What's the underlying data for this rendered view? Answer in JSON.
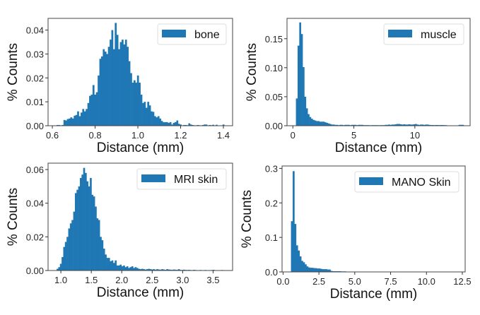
{
  "colors": {
    "bar": "#1f77b4",
    "frame": "#444444",
    "legend_border": "#dddddd"
  },
  "chart_data": [
    {
      "type": "bar",
      "subtype": "histogram",
      "legend": "bone",
      "legend_placement": "upper-right",
      "xlabel": "Distance (mm)",
      "ylabel": "% Counts",
      "xlim": [
        0.58,
        1.443
      ],
      "ylim": [
        0,
        0.0449
      ],
      "xticks": [
        0.6,
        0.8,
        1.0,
        1.2,
        1.4
      ],
      "xtick_labels": [
        "0.6",
        "0.8",
        "1.0",
        "1.2",
        "1.4"
      ],
      "yticks": [
        0,
        0.01,
        0.02,
        0.03,
        0.04
      ],
      "ytick_labels": [
        "0.00",
        "0.01",
        "0.02",
        "0.03",
        "0.04"
      ],
      "bin_start": 0.62,
      "bin_width": 0.008,
      "values": [
        0.0003,
        0.0003,
        0,
        0.0003,
        0.0024,
        0.0022,
        0.0028,
        0.003,
        0.0035,
        0.003,
        0.0042,
        0.0045,
        0.006,
        0.004,
        0.0055,
        0.007,
        0.006,
        0.007,
        0.0095,
        0.0125,
        0.013,
        0.017,
        0.013,
        0.014,
        0.021,
        0.028,
        0.029,
        0.032,
        0.031,
        0.03,
        0.033,
        0.036,
        0.04,
        0.032,
        0.043,
        0.038,
        0.032,
        0.035,
        0.036,
        0.034,
        0.036,
        0.033,
        0.027,
        0.022,
        0.018,
        0.019,
        0.018,
        0.021,
        0.018,
        0.013,
        0.0095,
        0.01,
        0.0075,
        0.01,
        0.0085,
        0.006,
        0.0058,
        0.004,
        0.0035,
        0.004,
        0.003,
        0.002,
        0.0015,
        0.0015,
        0.0015,
        0.0012,
        0.0015,
        0.0005,
        0.0012,
        0.0015,
        0.0022,
        0.0008,
        0.0005,
        0,
        0.0003,
        0.0003,
        0.0002,
        0.001,
        0.0005,
        0.0003,
        0.0002,
        0,
        0.0003,
        0.0002,
        0,
        0.0003,
        0.0005,
        0.0005,
        0,
        0.0003,
        0.0002,
        0.0004,
        0,
        0.0004,
        0,
        0,
        0,
        0.0005,
        0,
        0
      ]
    },
    {
      "type": "bar",
      "subtype": "histogram",
      "legend": "muscle",
      "legend_placement": "upper-right",
      "xlabel": "Distance (mm)",
      "ylabel": "% Counts",
      "xlim": [
        -0.48,
        14.53
      ],
      "ylim": [
        0,
        0.185
      ],
      "xticks": [
        0,
        5,
        10
      ],
      "xtick_labels": [
        "0",
        "5",
        "10"
      ],
      "yticks": [
        0,
        0.05,
        0.1,
        0.15
      ],
      "ytick_labels": [
        "0.00",
        "0.05",
        "0.10",
        "0.15"
      ],
      "bin_start": 0.25,
      "bin_width": 0.1375,
      "values": [
        0.047,
        0.138,
        0.178,
        0.158,
        0.101,
        0.05,
        0.03,
        0.02,
        0.015,
        0.012,
        0.01,
        0.009,
        0.008,
        0.008,
        0.007,
        0.007,
        0.007,
        0.006,
        0.005,
        0.004,
        0.003,
        0.002,
        0.002,
        0.0015,
        0.0015,
        0.001,
        0.0015,
        0.0015,
        0.001,
        0.0015,
        0.0015,
        0.0015,
        0.001,
        0.0015,
        0.0015,
        0.0015,
        0.001,
        0.0015,
        0.0015,
        0.0015,
        0.001,
        0.001,
        0.001,
        0.001,
        0.0008,
        0.001,
        0.001,
        0.001,
        0.001,
        0.0008,
        0.001,
        0.001,
        0.001,
        0.0015,
        0.0015,
        0.002,
        0.0015,
        0.002,
        0.002,
        0.0025,
        0.003,
        0.003,
        0.0025,
        0.002,
        0.0025,
        0.002,
        0.002,
        0.0025,
        0.002,
        0.002,
        0.0025,
        0.003,
        0.002,
        0.0015,
        0.002,
        0.002,
        0.0015,
        0.002,
        0.002,
        0.0015,
        0.0012,
        0.0012,
        0.001,
        0.0012,
        0.0012,
        0.001,
        0.0012,
        0.0012,
        0.001,
        0.001,
        0.0005,
        0.0005,
        0.0005,
        0,
        0,
        0,
        0,
        0.0015,
        0.0015,
        0.0015
      ]
    },
    {
      "type": "bar",
      "subtype": "histogram",
      "legend": "MRI skin",
      "legend_placement": "upper-right",
      "xlabel": "Distance (mm)",
      "ylabel": "% Counts",
      "xlim": [
        0.79,
        3.82
      ],
      "ylim": [
        0,
        0.0638
      ],
      "xticks": [
        1.0,
        1.5,
        2.0,
        2.5,
        3.0,
        3.5
      ],
      "xtick_labels": [
        "1.0",
        "1.5",
        "2.0",
        "2.5",
        "3.0",
        "3.5"
      ],
      "yticks": [
        0,
        0.02,
        0.04,
        0.06
      ],
      "ytick_labels": [
        "0.00",
        "0.02",
        "0.04",
        "0.06"
      ],
      "bin_start": 0.93,
      "bin_width": 0.0273,
      "values": [
        0.001,
        0.002,
        0.004,
        0.008,
        0.014,
        0.017,
        0.02,
        0.025,
        0.028,
        0.03,
        0.035,
        0.046,
        0.048,
        0.05,
        0.055,
        0.057,
        0.061,
        0.058,
        0.053,
        0.05,
        0.055,
        0.045,
        0.044,
        0.038,
        0.031,
        0.03,
        0.02,
        0.018,
        0.013,
        0.0095,
        0.0075,
        0.0075,
        0.0055,
        0.006,
        0.0045,
        0.006,
        0.003,
        0.003,
        0.0035,
        0.0025,
        0.003,
        0.002,
        0.0025,
        0.0015,
        0.002,
        0.0025,
        0.0015,
        0.002,
        0.0015,
        0.001,
        0.0008,
        0.001,
        0.0008,
        0.0006,
        0.0008,
        0.001,
        0.0008,
        0.0006,
        0.0008,
        0.0005,
        0.0008,
        0.0006,
        0.0005,
        0.0008,
        0.0006,
        0.0004,
        0.0008,
        0.0006,
        0.0005,
        0.0004,
        0.0006,
        0.0005,
        0.0004,
        0.0008,
        0.0004,
        0.0003,
        0.0005,
        0.0004,
        0.0003,
        0.0004,
        0.0003,
        0.0002,
        0.0004,
        0.0003,
        0.0002,
        0,
        0.0003,
        0.0002,
        0,
        0.0003,
        0.0002,
        0,
        0,
        0.0003,
        0.0004,
        0,
        0,
        0.0002,
        0,
        0.0003
      ]
    },
    {
      "type": "bar",
      "subtype": "histogram",
      "legend": "MANO Skin",
      "legend_placement": "upper-right",
      "xlabel": "Distance (mm)",
      "ylabel": "% Counts",
      "xlim": [
        -0.07,
        12.7
      ],
      "ylim": [
        0,
        0.307
      ],
      "xticks": [
        0,
        2.5,
        5,
        7.5,
        10,
        12.5
      ],
      "xtick_labels": [
        "0.0",
        "2.5",
        "5.0",
        "7.5",
        "10.0",
        "12.5"
      ],
      "yticks": [
        0,
        0.1,
        0.2,
        0.3
      ],
      "ytick_labels": [
        "0.0",
        "0.1",
        "0.2",
        "0.3"
      ],
      "bin_start": 0.55,
      "bin_width": 0.12,
      "values": [
        0.147,
        0.292,
        0.139,
        0.077,
        0.062,
        0.045,
        0.032,
        0.028,
        0.022,
        0.016,
        0.013,
        0.012,
        0.012,
        0.011,
        0.011,
        0.01,
        0.01,
        0.009,
        0.008,
        0.008,
        0.008,
        0.007,
        0.007,
        0.003,
        0.002,
        0.002,
        0.002,
        0.002,
        0.002,
        0.0015,
        0.0015,
        0.0015,
        0.001,
        0,
        0,
        0,
        0.001,
        0,
        0,
        0.001,
        0,
        0,
        0,
        0.001,
        0,
        0,
        0,
        0,
        0.001,
        0,
        0,
        0,
        0.001,
        0,
        0.001,
        0,
        0,
        0,
        0,
        0,
        0,
        0,
        0.001,
        0,
        0,
        0,
        0,
        0,
        0,
        0,
        0,
        0,
        0,
        0,
        0,
        0,
        0,
        0,
        0,
        0,
        0,
        0,
        0,
        0,
        0,
        0,
        0,
        0,
        0,
        0,
        0,
        0,
        0,
        0,
        0,
        0,
        0,
        0,
        0,
        0
      ]
    }
  ]
}
